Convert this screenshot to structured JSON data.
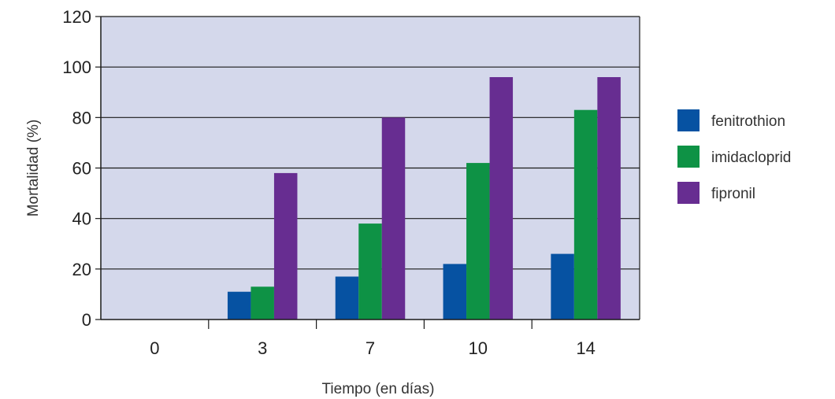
{
  "chart_data": {
    "type": "bar",
    "title": "",
    "xlabel": "Tiempo (en días)",
    "ylabel": "Mortalidad (%)",
    "categories": [
      "0",
      "3",
      "7",
      "10",
      "14"
    ],
    "ylim": [
      0,
      120
    ],
    "yticks": [
      "0",
      "20",
      "40",
      "60",
      "80",
      "100",
      "120"
    ],
    "grid": true,
    "legend_position": "right",
    "background_color": "#d4d8eb",
    "series": [
      {
        "name": "fenitrothion",
        "color": "#0652a2",
        "values": [
          0,
          11,
          17,
          22,
          26
        ]
      },
      {
        "name": "imidacloprid",
        "color": "#0e9245",
        "values": [
          0,
          13,
          38,
          62,
          83
        ]
      },
      {
        "name": "fipronil",
        "color": "#672d91",
        "values": [
          0,
          58,
          80,
          96,
          96
        ]
      }
    ]
  }
}
